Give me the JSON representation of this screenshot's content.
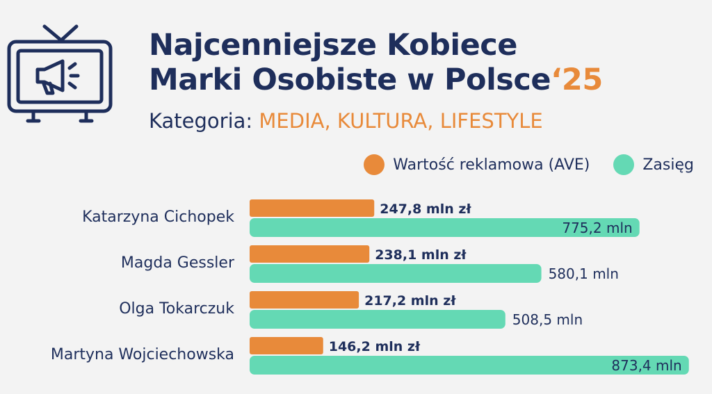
{
  "header": {
    "title_line1": "Najcenniejsze Kobiece",
    "title_line2": "Marki Osobiste w Polsce",
    "title_year": "‘25",
    "category_label": "Kategoria:",
    "category_value": "MEDIA, KULTURA, LIFESTYLE",
    "icon": "tv-megaphone-icon"
  },
  "colors": {
    "navy": "#1e2e5b",
    "orange": "#e88a3a",
    "mint": "#64d9b4"
  },
  "chart_data": {
    "type": "bar",
    "orientation": "horizontal",
    "legend": "top-right",
    "grid": false,
    "categories": [
      "Katarzyna Cichopek",
      "Magda Gessler",
      "Olga Tokarczuk",
      "Martyna Wojciechowska"
    ],
    "series": [
      {
        "name": "Wartość reklamowa (AVE)",
        "color": "#e88a3a",
        "values": [
          247.8,
          238.1,
          217.2,
          146.2
        ],
        "labels": [
          "247,8 mln zł",
          "238,1 mln zł",
          "217,2 mln zł",
          "146,2 mln zł"
        ]
      },
      {
        "name": "Zasięg",
        "color": "#64d9b4",
        "values": [
          775.2,
          580.1,
          508.5,
          873.4
        ],
        "labels": [
          "775,2 mln",
          "580,1 mln",
          "508,5 mln",
          "873,4 mln"
        ]
      }
    ]
  }
}
